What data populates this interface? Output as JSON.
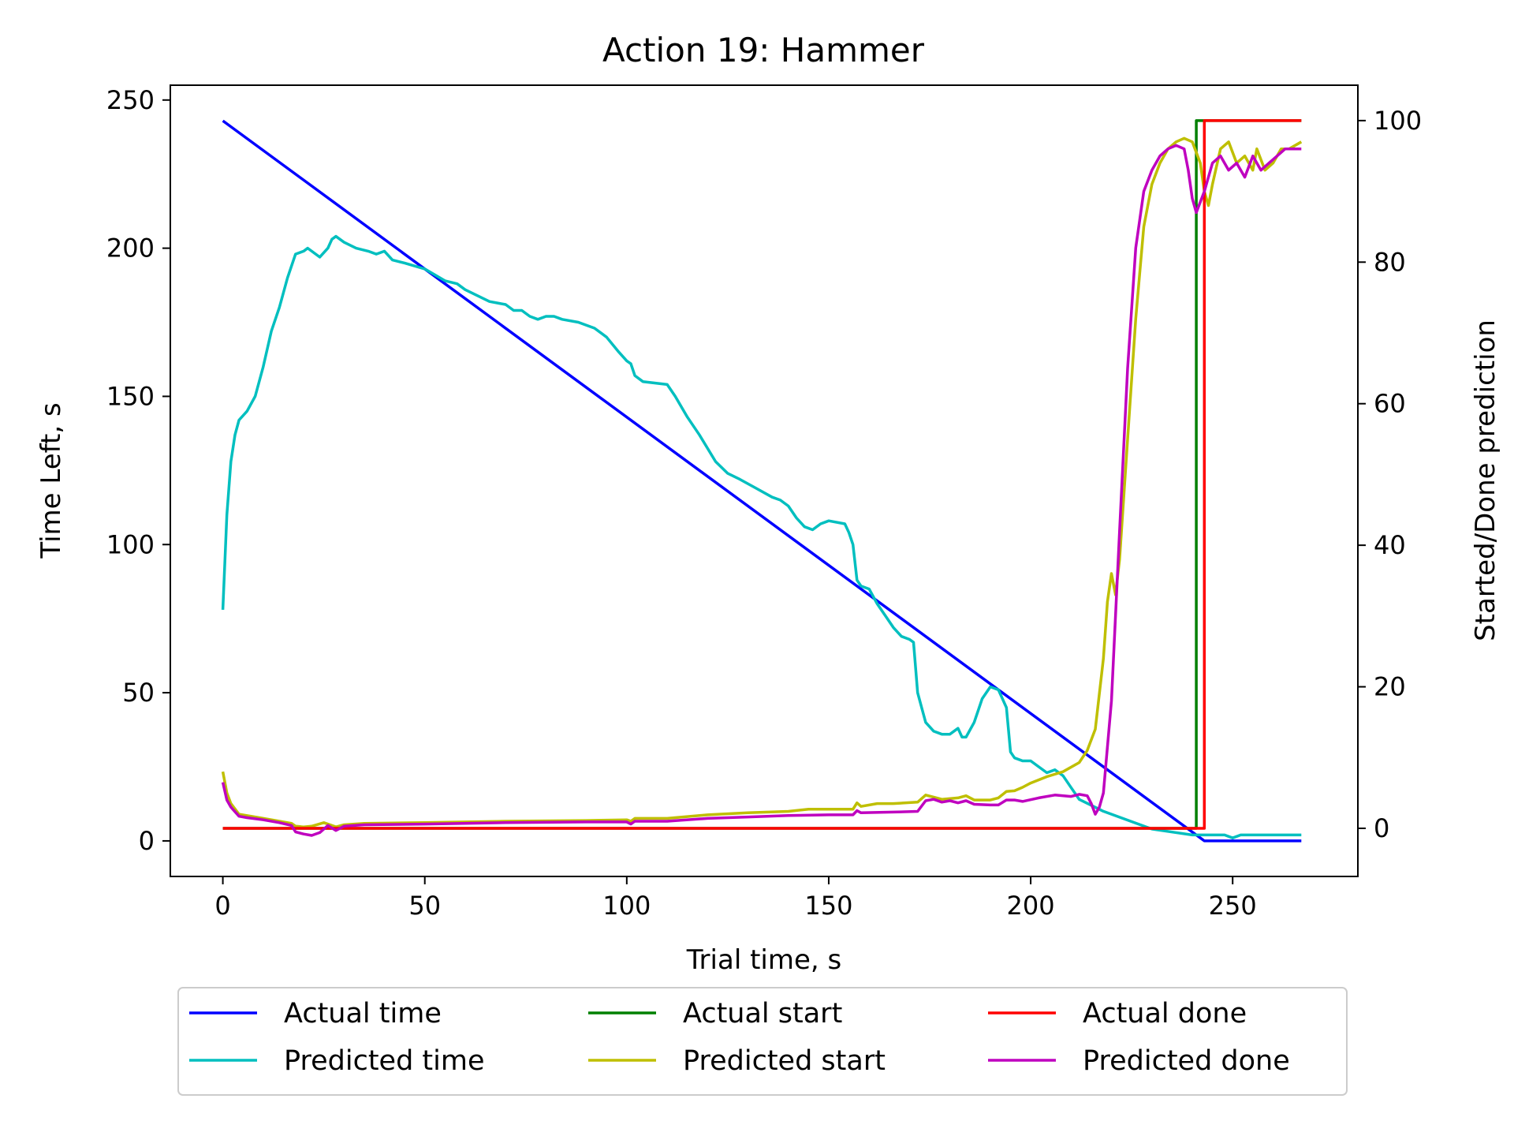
{
  "chart_data": {
    "type": "line",
    "title": "Action 19: Hammer",
    "xlabel": "Trial time, s",
    "ylabel": "Time Left, s",
    "y2label": "Started/Done prediction",
    "xlim": [
      -13,
      281
    ],
    "ylim": [
      -12,
      255
    ],
    "y2lim": [
      -6.8,
      105
    ],
    "xticks": [
      0,
      50,
      100,
      150,
      200,
      250
    ],
    "yticks": [
      0,
      50,
      100,
      150,
      200,
      250
    ],
    "y2ticks": [
      0,
      20,
      40,
      60,
      80,
      100
    ],
    "grid": false,
    "legend": {
      "placement": "below",
      "columns": 3
    },
    "series": [
      {
        "name": "Actual time",
        "axis": "left",
        "color": "#0000ff",
        "points": [
          [
            0,
            243
          ],
          [
            243,
            0
          ],
          [
            267,
            0
          ]
        ]
      },
      {
        "name": "Predicted time",
        "axis": "left",
        "color": "#00bfbf",
        "points": [
          [
            0,
            78
          ],
          [
            1,
            110
          ],
          [
            2,
            128
          ],
          [
            3,
            137
          ],
          [
            4,
            142
          ],
          [
            6,
            145
          ],
          [
            8,
            150
          ],
          [
            10,
            160
          ],
          [
            12,
            172
          ],
          [
            14,
            180
          ],
          [
            16,
            190
          ],
          [
            18,
            198
          ],
          [
            20,
            199
          ],
          [
            21,
            200
          ],
          [
            24,
            197
          ],
          [
            26,
            200
          ],
          [
            27,
            203
          ],
          [
            28,
            204
          ],
          [
            30,
            202
          ],
          [
            33,
            200
          ],
          [
            36,
            199
          ],
          [
            38,
            198
          ],
          [
            40,
            199
          ],
          [
            42,
            196
          ],
          [
            45,
            195
          ],
          [
            50,
            193
          ],
          [
            55,
            189
          ],
          [
            58,
            188
          ],
          [
            60,
            186
          ],
          [
            63,
            184
          ],
          [
            66,
            182
          ],
          [
            70,
            181
          ],
          [
            72,
            179
          ],
          [
            74,
            179
          ],
          [
            76,
            177
          ],
          [
            78,
            176
          ],
          [
            80,
            177
          ],
          [
            82,
            177
          ],
          [
            84,
            176
          ],
          [
            88,
            175
          ],
          [
            92,
            173
          ],
          [
            95,
            170
          ],
          [
            98,
            165
          ],
          [
            100,
            162
          ],
          [
            101,
            161
          ],
          [
            102,
            157
          ],
          [
            104,
            155
          ],
          [
            110,
            154
          ],
          [
            112,
            150
          ],
          [
            115,
            143
          ],
          [
            118,
            137
          ],
          [
            122,
            128
          ],
          [
            125,
            124
          ],
          [
            128,
            122
          ],
          [
            132,
            119
          ],
          [
            136,
            116
          ],
          [
            138,
            115
          ],
          [
            140,
            113
          ],
          [
            142,
            109
          ],
          [
            144,
            106
          ],
          [
            146,
            105
          ],
          [
            148,
            107
          ],
          [
            150,
            108
          ],
          [
            154,
            107
          ],
          [
            155,
            104
          ],
          [
            156,
            100
          ],
          [
            157,
            88
          ],
          [
            158,
            86
          ],
          [
            160,
            85
          ],
          [
            162,
            80
          ],
          [
            164,
            76
          ],
          [
            166,
            72
          ],
          [
            168,
            69
          ],
          [
            170,
            68
          ],
          [
            171,
            67
          ],
          [
            172,
            50
          ],
          [
            173,
            45
          ],
          [
            174,
            40
          ],
          [
            176,
            37
          ],
          [
            178,
            36
          ],
          [
            180,
            36
          ],
          [
            182,
            38
          ],
          [
            183,
            35
          ],
          [
            184,
            35
          ],
          [
            186,
            40
          ],
          [
            188,
            48
          ],
          [
            190,
            52
          ],
          [
            192,
            51
          ],
          [
            194,
            45
          ],
          [
            195,
            30
          ],
          [
            196,
            28
          ],
          [
            198,
            27
          ],
          [
            200,
            27
          ],
          [
            202,
            25
          ],
          [
            204,
            23
          ],
          [
            206,
            24
          ],
          [
            208,
            22
          ],
          [
            210,
            18
          ],
          [
            212,
            14
          ],
          [
            215,
            12
          ],
          [
            218,
            10
          ],
          [
            222,
            8
          ],
          [
            226,
            6
          ],
          [
            230,
            4
          ],
          [
            235,
            3
          ],
          [
            240,
            2
          ],
          [
            244,
            2
          ],
          [
            248,
            2
          ],
          [
            250,
            1
          ],
          [
            252,
            2
          ],
          [
            255,
            2
          ],
          [
            258,
            2
          ],
          [
            261,
            2
          ],
          [
            264,
            2
          ],
          [
            267,
            2
          ]
        ]
      },
      {
        "name": "Actual start",
        "axis": "right",
        "color": "#008000",
        "points": [
          [
            0,
            0
          ],
          [
            241,
            0
          ],
          [
            241,
            100
          ],
          [
            267,
            100
          ]
        ]
      },
      {
        "name": "Predicted start",
        "axis": "right",
        "color": "#bfbf00",
        "points": [
          [
            0,
            8
          ],
          [
            1,
            5
          ],
          [
            2,
            3.5
          ],
          [
            4,
            2
          ],
          [
            6,
            1.8
          ],
          [
            10,
            1.4
          ],
          [
            14,
            1
          ],
          [
            17,
            0.7
          ],
          [
            18,
            0.3
          ],
          [
            20,
            0.2
          ],
          [
            22,
            0.3
          ],
          [
            25,
            0.8
          ],
          [
            28,
            0.2
          ],
          [
            30,
            0.5
          ],
          [
            35,
            0.7
          ],
          [
            50,
            0.8
          ],
          [
            70,
            1
          ],
          [
            90,
            1.1
          ],
          [
            100,
            1.2
          ],
          [
            101,
            1
          ],
          [
            102,
            1.4
          ],
          [
            110,
            1.4
          ],
          [
            120,
            1.9
          ],
          [
            130,
            2.2
          ],
          [
            140,
            2.4
          ],
          [
            145,
            2.7
          ],
          [
            150,
            2.7
          ],
          [
            156,
            2.7
          ],
          [
            157,
            3.6
          ],
          [
            158,
            3.1
          ],
          [
            162,
            3.5
          ],
          [
            166,
            3.5
          ],
          [
            172,
            3.7
          ],
          [
            174,
            4.7
          ],
          [
            176,
            4.4
          ],
          [
            178,
            4.1
          ],
          [
            182,
            4.3
          ],
          [
            184,
            4.6
          ],
          [
            186,
            4
          ],
          [
            190,
            4
          ],
          [
            192,
            4.3
          ],
          [
            194,
            5.2
          ],
          [
            196,
            5.3
          ],
          [
            198,
            5.8
          ],
          [
            200,
            6.4
          ],
          [
            204,
            7.3
          ],
          [
            208,
            8
          ],
          [
            212,
            9.3
          ],
          [
            214,
            11
          ],
          [
            216,
            14
          ],
          [
            218,
            24
          ],
          [
            219,
            32
          ],
          [
            220,
            36
          ],
          [
            221,
            33
          ],
          [
            222,
            38
          ],
          [
            224,
            55
          ],
          [
            226,
            72
          ],
          [
            228,
            85
          ],
          [
            230,
            91
          ],
          [
            232,
            94
          ],
          [
            234,
            96
          ],
          [
            236,
            97
          ],
          [
            238,
            97.5
          ],
          [
            240,
            97
          ],
          [
            242,
            94
          ],
          [
            243,
            90
          ],
          [
            244,
            88
          ],
          [
            245,
            91
          ],
          [
            247,
            96
          ],
          [
            249,
            97
          ],
          [
            251,
            94
          ],
          [
            253,
            95
          ],
          [
            255,
            93
          ],
          [
            256,
            96
          ],
          [
            258,
            93
          ],
          [
            260,
            94
          ],
          [
            262,
            96
          ],
          [
            264,
            96
          ],
          [
            267,
            97
          ]
        ]
      },
      {
        "name": "Actual done",
        "axis": "right",
        "color": "#ff0000",
        "points": [
          [
            0,
            0
          ],
          [
            243,
            0
          ],
          [
            243,
            100
          ],
          [
            267,
            100
          ]
        ]
      },
      {
        "name": "Predicted done",
        "axis": "right",
        "color": "#bf00bf",
        "points": [
          [
            0,
            6.5
          ],
          [
            1,
            4
          ],
          [
            2,
            3
          ],
          [
            4,
            1.7
          ],
          [
            6,
            1.5
          ],
          [
            10,
            1.2
          ],
          [
            14,
            0.8
          ],
          [
            17,
            0.4
          ],
          [
            18,
            -0.5
          ],
          [
            20,
            -0.8
          ],
          [
            22,
            -1
          ],
          [
            24,
            -0.6
          ],
          [
            26,
            0.4
          ],
          [
            28,
            -0.3
          ],
          [
            30,
            0.3
          ],
          [
            35,
            0.5
          ],
          [
            50,
            0.6
          ],
          [
            70,
            0.8
          ],
          [
            90,
            0.9
          ],
          [
            100,
            0.9
          ],
          [
            101,
            0.6
          ],
          [
            102,
            1
          ],
          [
            110,
            1
          ],
          [
            120,
            1.4
          ],
          [
            130,
            1.6
          ],
          [
            140,
            1.8
          ],
          [
            150,
            1.9
          ],
          [
            156,
            1.9
          ],
          [
            157,
            2.5
          ],
          [
            158,
            2.2
          ],
          [
            166,
            2.3
          ],
          [
            172,
            2.4
          ],
          [
            174,
            3.9
          ],
          [
            176,
            4.1
          ],
          [
            178,
            3.7
          ],
          [
            180,
            3.9
          ],
          [
            182,
            3.6
          ],
          [
            184,
            3.9
          ],
          [
            186,
            3.4
          ],
          [
            190,
            3.3
          ],
          [
            192,
            3.3
          ],
          [
            194,
            4
          ],
          [
            196,
            4
          ],
          [
            198,
            3.8
          ],
          [
            202,
            4.3
          ],
          [
            206,
            4.7
          ],
          [
            210,
            4.5
          ],
          [
            212,
            4.8
          ],
          [
            214,
            4.6
          ],
          [
            215,
            3.5
          ],
          [
            216,
            2
          ],
          [
            217,
            3
          ],
          [
            218,
            5
          ],
          [
            220,
            18
          ],
          [
            222,
            42
          ],
          [
            224,
            65
          ],
          [
            226,
            82
          ],
          [
            228,
            90
          ],
          [
            230,
            93
          ],
          [
            232,
            95
          ],
          [
            234,
            96
          ],
          [
            236,
            96.5
          ],
          [
            238,
            96
          ],
          [
            239,
            93
          ],
          [
            240,
            89
          ],
          [
            241,
            87
          ],
          [
            243,
            90
          ],
          [
            245,
            94
          ],
          [
            247,
            95
          ],
          [
            249,
            93
          ],
          [
            251,
            94
          ],
          [
            253,
            92
          ],
          [
            255,
            95
          ],
          [
            257,
            93
          ],
          [
            259,
            94
          ],
          [
            261,
            95
          ],
          [
            263,
            96
          ],
          [
            265,
            96
          ],
          [
            267,
            96
          ]
        ]
      }
    ]
  }
}
